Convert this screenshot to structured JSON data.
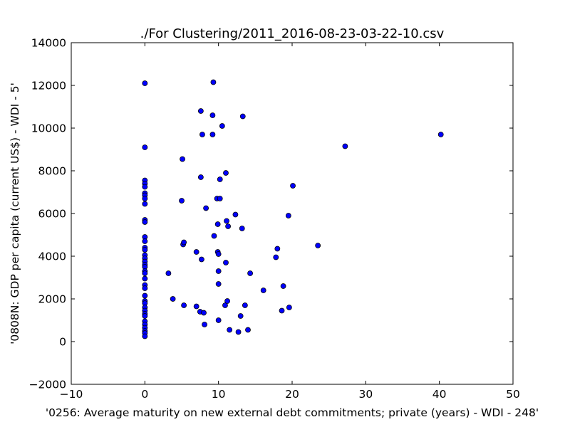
{
  "chart_data": {
    "type": "scatter",
    "title": "./For Clustering/2011_2016-08-23-03-22-10.csv",
    "xlabel": "'0256: Average maturity on new external debt commitments; private  (years) - WDI - 248'",
    "ylabel": "'0808N: GDP per capita  (current US$) - WDI - 5'",
    "xlim": [
      -10,
      50
    ],
    "ylim": [
      -2000,
      14000
    ],
    "xticks": [
      "−10",
      "0",
      "10",
      "20",
      "30",
      "40",
      "50"
    ],
    "yticks": [
      "−2000",
      "0",
      "2000",
      "4000",
      "6000",
      "8000",
      "10000",
      "12000",
      "14000"
    ],
    "grid": false,
    "marker_color": "#0000ff",
    "points": [
      [
        0,
        12100
      ],
      [
        0,
        9100
      ],
      [
        0,
        7550
      ],
      [
        0,
        7400
      ],
      [
        0,
        7250
      ],
      [
        0,
        6950
      ],
      [
        0,
        6850
      ],
      [
        0,
        6700
      ],
      [
        0,
        6450
      ],
      [
        0,
        5700
      ],
      [
        0,
        5600
      ],
      [
        0,
        4900
      ],
      [
        0,
        4700
      ],
      [
        0,
        4400
      ],
      [
        0,
        4300
      ],
      [
        0,
        4050
      ],
      [
        0,
        3900
      ],
      [
        0,
        3750
      ],
      [
        0,
        3600
      ],
      [
        0,
        3500
      ],
      [
        0,
        3300
      ],
      [
        0,
        3200
      ],
      [
        0,
        2950
      ],
      [
        0,
        2650
      ],
      [
        0,
        2500
      ],
      [
        0,
        2150
      ],
      [
        0,
        1900
      ],
      [
        0,
        1800
      ],
      [
        0,
        1600
      ],
      [
        0,
        1450
      ],
      [
        0,
        1300
      ],
      [
        0,
        1200
      ],
      [
        0,
        950
      ],
      [
        0,
        800
      ],
      [
        0,
        650
      ],
      [
        0,
        500
      ],
      [
        0,
        400
      ],
      [
        0,
        250
      ],
      [
        3.2,
        3200
      ],
      [
        3.8,
        2000
      ],
      [
        5.0,
        6600
      ],
      [
        5.1,
        8550
      ],
      [
        5.2,
        4550
      ],
      [
        5.3,
        4650
      ],
      [
        5.3,
        1700
      ],
      [
        7.0,
        4200
      ],
      [
        7.0,
        1650
      ],
      [
        7.5,
        1400
      ],
      [
        7.6,
        7700
      ],
      [
        7.7,
        3850
      ],
      [
        7.6,
        10800
      ],
      [
        7.8,
        9700
      ],
      [
        8.0,
        1350
      ],
      [
        8.1,
        800
      ],
      [
        8.3,
        6250
      ],
      [
        9.2,
        9700
      ],
      [
        9.2,
        10600
      ],
      [
        9.3,
        12150
      ],
      [
        9.4,
        4950
      ],
      [
        9.8,
        6700
      ],
      [
        9.9,
        5500
      ],
      [
        9.9,
        4200
      ],
      [
        10.0,
        4100
      ],
      [
        10.0,
        3300
      ],
      [
        10.0,
        2700
      ],
      [
        10.0,
        1000
      ],
      [
        10.2,
        7600
      ],
      [
        10.2,
        6700
      ],
      [
        10.5,
        10100
      ],
      [
        10.9,
        1700
      ],
      [
        11.0,
        7900
      ],
      [
        11.0,
        3700
      ],
      [
        11.1,
        5650
      ],
      [
        11.2,
        1900
      ],
      [
        11.3,
        5400
      ],
      [
        11.5,
        550
      ],
      [
        12.3,
        5950
      ],
      [
        12.7,
        450
      ],
      [
        13.0,
        1200
      ],
      [
        13.2,
        5300
      ],
      [
        13.3,
        10550
      ],
      [
        13.6,
        1700
      ],
      [
        14.0,
        550
      ],
      [
        14.3,
        3200
      ],
      [
        16.1,
        2400
      ],
      [
        17.8,
        3950
      ],
      [
        18.0,
        4350
      ],
      [
        18.6,
        1450
      ],
      [
        18.8,
        2600
      ],
      [
        19.5,
        5900
      ],
      [
        19.6,
        1600
      ],
      [
        20.1,
        7300
      ],
      [
        23.5,
        4500
      ],
      [
        27.2,
        9150
      ],
      [
        40.2,
        9700
      ]
    ]
  }
}
